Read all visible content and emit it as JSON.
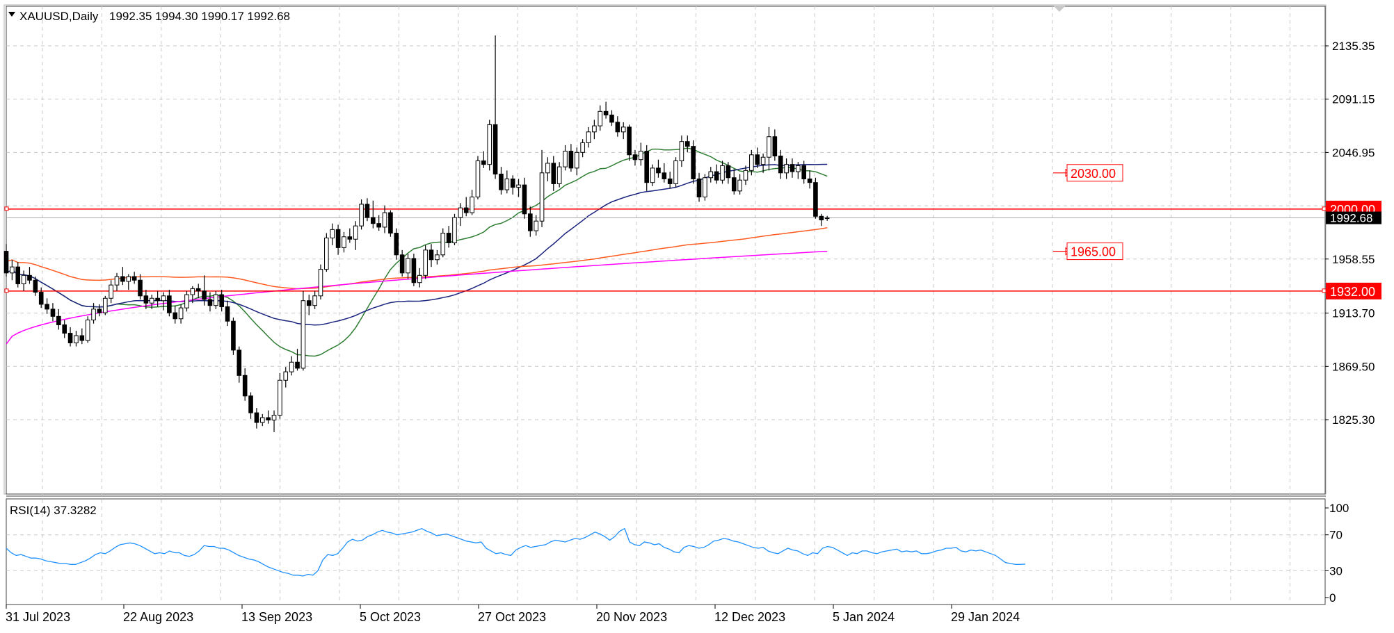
{
  "header": {
    "symbol": "XAUUSD,Daily",
    "ohlc": "1992.35 1994.30 1990.17 1992.68"
  },
  "rsi": {
    "label": "RSI(14) 37.3282",
    "ticks": [
      "100",
      "70",
      "30",
      "0"
    ]
  },
  "colors": {
    "candle": "#000000",
    "ma_green": "#2e7d32",
    "ma_blue": "#1a237e",
    "ma_orange": "#ff5a1f",
    "ma_magenta": "#ff00ff",
    "level_red": "#ff0000",
    "rsi_line": "#1e90ff",
    "grid": "#c8c8c8"
  },
  "chart_data": {
    "type": "line",
    "price_ticks": [
      "2135.35",
      "2091.15",
      "2046.95",
      "1958.55",
      "1913.70",
      "1869.50",
      "1825.30"
    ],
    "price_ylim": [
      1805,
      2155
    ],
    "current_price": "1992.68",
    "x_labels": [
      "31 Jul 2023",
      "22 Aug 2023",
      "13 Sep 2023",
      "5 Oct 2023",
      "27 Oct 2023",
      "20 Nov 2023",
      "12 Dec 2023",
      "5 Jan 2024",
      "29 Jan 2024"
    ],
    "levels": [
      {
        "value": 2030.0,
        "label": "2030.00",
        "style": "box"
      },
      {
        "value": 2000.0,
        "label": "2000.00",
        "style": "line"
      },
      {
        "value": 1965.0,
        "label": "1965.00",
        "style": "box"
      },
      {
        "value": 1932.0,
        "label": "1932.00",
        "style": "line"
      }
    ],
    "candles": [
      [
        1965,
        1971,
        1944,
        1947
      ],
      [
        1947,
        1958,
        1941,
        1952
      ],
      [
        1952,
        1956,
        1935,
        1938
      ],
      [
        1938,
        1949,
        1932,
        1945
      ],
      [
        1945,
        1952,
        1938,
        1941
      ],
      [
        1941,
        1944,
        1928,
        1931
      ],
      [
        1931,
        1935,
        1918,
        1921
      ],
      [
        1921,
        1926,
        1913,
        1917
      ],
      [
        1917,
        1922,
        1907,
        1911
      ],
      [
        1911,
        1917,
        1900,
        1904
      ],
      [
        1904,
        1908,
        1893,
        1897
      ],
      [
        1897,
        1902,
        1886,
        1889
      ],
      [
        1889,
        1899,
        1886,
        1895
      ],
      [
        1895,
        1901,
        1888,
        1891
      ],
      [
        1891,
        1911,
        1889,
        1908
      ],
      [
        1908,
        1922,
        1905,
        1917
      ],
      [
        1917,
        1921,
        1911,
        1914
      ],
      [
        1914,
        1928,
        1912,
        1926
      ],
      [
        1926,
        1941,
        1922,
        1937
      ],
      [
        1937,
        1947,
        1932,
        1944
      ],
      [
        1944,
        1952,
        1937,
        1940
      ],
      [
        1940,
        1946,
        1933,
        1944
      ],
      [
        1944,
        1948,
        1938,
        1941
      ],
      [
        1941,
        1946,
        1925,
        1928
      ],
      [
        1928,
        1933,
        1917,
        1922
      ],
      [
        1922,
        1929,
        1917,
        1926
      ],
      [
        1926,
        1932,
        1919,
        1924
      ],
      [
        1924,
        1931,
        1916,
        1928
      ],
      [
        1928,
        1933,
        1911,
        1914
      ],
      [
        1914,
        1920,
        1905,
        1909
      ],
      [
        1909,
        1921,
        1905,
        1918
      ],
      [
        1918,
        1932,
        1915,
        1929
      ],
      [
        1929,
        1936,
        1922,
        1934
      ],
      [
        1934,
        1938,
        1926,
        1932
      ],
      [
        1932,
        1945,
        1920,
        1925
      ],
      [
        1925,
        1931,
        1915,
        1920
      ],
      [
        1920,
        1932,
        1917,
        1929
      ],
      [
        1929,
        1933,
        1915,
        1919
      ],
      [
        1919,
        1924,
        1903,
        1907
      ],
      [
        1907,
        1910,
        1879,
        1883
      ],
      [
        1883,
        1886,
        1856,
        1862
      ],
      [
        1862,
        1868,
        1841,
        1845
      ],
      [
        1845,
        1848,
        1826,
        1831
      ],
      [
        1831,
        1835,
        1818,
        1823
      ],
      [
        1823,
        1830,
        1820,
        1827
      ],
      [
        1827,
        1833,
        1822,
        1825
      ],
      [
        1825,
        1833,
        1815,
        1829
      ],
      [
        1829,
        1864,
        1826,
        1858
      ],
      [
        1858,
        1869,
        1852,
        1865
      ],
      [
        1865,
        1878,
        1862,
        1873
      ],
      [
        1873,
        1884,
        1866,
        1868
      ],
      [
        1868,
        1932,
        1866,
        1924
      ],
      [
        1924,
        1929,
        1912,
        1920
      ],
      [
        1920,
        1932,
        1917,
        1928
      ],
      [
        1928,
        1954,
        1925,
        1950
      ],
      [
        1950,
        1980,
        1948,
        1976
      ],
      [
        1976,
        1988,
        1970,
        1983
      ],
      [
        1983,
        1987,
        1962,
        1968
      ],
      [
        1968,
        1981,
        1964,
        1977
      ],
      [
        1977,
        1984,
        1972,
        1975
      ],
      [
        1975,
        1990,
        1966,
        1986
      ],
      [
        1986,
        2008,
        1983,
        2004
      ],
      [
        2004,
        2009,
        1990,
        1993
      ],
      [
        1993,
        2007,
        1984,
        1988
      ],
      [
        1988,
        1995,
        1982,
        1985
      ],
      [
        1985,
        2003,
        1980,
        1997
      ],
      [
        1997,
        1999,
        1977,
        1980
      ],
      [
        1980,
        1984,
        1958,
        1962
      ],
      [
        1962,
        1966,
        1944,
        1947
      ],
      [
        1947,
        1963,
        1942,
        1959
      ],
      [
        1959,
        1963,
        1936,
        1939
      ],
      [
        1939,
        1951,
        1935,
        1945
      ],
      [
        1945,
        1970,
        1942,
        1966
      ],
      [
        1966,
        1971,
        1952,
        1958
      ],
      [
        1958,
        1966,
        1954,
        1962
      ],
      [
        1962,
        1984,
        1960,
        1980
      ],
      [
        1980,
        1986,
        1968,
        1972
      ],
      [
        1972,
        1996,
        1970,
        1993
      ],
      [
        1993,
        2005,
        1986,
        2001
      ],
      [
        2001,
        2010,
        1994,
        1997
      ],
      [
        1997,
        2016,
        1995,
        2010
      ],
      [
        2010,
        2044,
        2008,
        2040
      ],
      [
        2040,
        2048,
        2034,
        2037
      ],
      [
        2037,
        2074,
        2032,
        2070
      ],
      [
        2070,
        2144,
        2025,
        2029
      ],
      [
        2029,
        2035,
        2012,
        2016
      ],
      [
        2016,
        2032,
        2013,
        2025
      ],
      [
        2025,
        2028,
        2012,
        2018
      ],
      [
        2018,
        2025,
        2010,
        2020
      ],
      [
        2020,
        2026,
        1992,
        1996
      ],
      [
        1996,
        2002,
        1977,
        1982
      ],
      [
        1982,
        1995,
        1978,
        1990
      ],
      [
        1990,
        2049,
        1985,
        2030
      ],
      [
        2030,
        2043,
        2023,
        2038
      ],
      [
        2038,
        2044,
        2015,
        2021
      ],
      [
        2021,
        2039,
        2018,
        2035
      ],
      [
        2035,
        2053,
        2032,
        2048
      ],
      [
        2048,
        2054,
        2031,
        2034
      ],
      [
        2034,
        2051,
        2028,
        2047
      ],
      [
        2047,
        2058,
        2043,
        2055
      ],
      [
        2055,
        2068,
        2051,
        2064
      ],
      [
        2064,
        2074,
        2058,
        2069
      ],
      [
        2069,
        2086,
        2065,
        2081
      ],
      [
        2081,
        2089,
        2075,
        2078
      ],
      [
        2078,
        2082,
        2069,
        2072
      ],
      [
        2072,
        2077,
        2060,
        2064
      ],
      [
        2064,
        2072,
        2058,
        2068
      ],
      [
        2068,
        2070,
        2040,
        2045
      ],
      [
        2045,
        2049,
        2036,
        2041
      ],
      [
        2041,
        2055,
        2036,
        2048
      ],
      [
        2048,
        2053,
        2015,
        2022
      ],
      [
        2022,
        2037,
        2019,
        2034
      ],
      [
        2034,
        2041,
        2026,
        2030
      ],
      [
        2030,
        2038,
        2022,
        2025
      ],
      [
        2025,
        2031,
        2017,
        2021
      ],
      [
        2021,
        2043,
        2018,
        2040
      ],
      [
        2040,
        2061,
        2035,
        2056
      ],
      [
        2056,
        2061,
        2047,
        2052
      ],
      [
        2052,
        2057,
        2021,
        2025
      ],
      [
        2025,
        2030,
        2006,
        2010
      ],
      [
        2010,
        2029,
        2007,
        2026
      ],
      [
        2026,
        2035,
        2022,
        2031
      ],
      [
        2031,
        2037,
        2021,
        2024
      ],
      [
        2024,
        2040,
        2021,
        2036
      ],
      [
        2036,
        2039,
        2021,
        2026
      ],
      [
        2026,
        2033,
        2012,
        2015
      ],
      [
        2015,
        2029,
        2012,
        2024
      ],
      [
        2024,
        2036,
        2020,
        2032
      ],
      [
        2032,
        2049,
        2028,
        2045
      ],
      [
        2045,
        2051,
        2034,
        2037
      ],
      [
        2037,
        2046,
        2030,
        2043
      ],
      [
        2043,
        2068,
        2032,
        2060
      ],
      [
        2060,
        2066,
        2040,
        2044
      ],
      [
        2044,
        2049,
        2025,
        2030
      ],
      [
        2030,
        2042,
        2025,
        2037
      ],
      [
        2037,
        2042,
        2026,
        2031
      ],
      [
        2031,
        2039,
        2025,
        2036
      ],
      [
        2036,
        2040,
        2021,
        2025
      ],
      [
        2025,
        2032,
        2017,
        2022
      ],
      [
        2022,
        2026,
        1992,
        1994
      ],
      [
        1994,
        1996,
        1986,
        1991
      ],
      [
        1992.35,
        1994.3,
        1990.17,
        1992.68
      ]
    ],
    "rsi_values": [
      55,
      50,
      47,
      48,
      46,
      44,
      44,
      43,
      41,
      40,
      39,
      38,
      38,
      37,
      37,
      39,
      41,
      44,
      48,
      50,
      49,
      52,
      56,
      59,
      60,
      61,
      60,
      58,
      55,
      52,
      49,
      50,
      49,
      52,
      50,
      50,
      47,
      46,
      48,
      52,
      58,
      57,
      57,
      55,
      55,
      53,
      50,
      47,
      45,
      43,
      42,
      40,
      37,
      34,
      32,
      30,
      28,
      27,
      25,
      25,
      24,
      26,
      25,
      30,
      42,
      48,
      47,
      49,
      55,
      62,
      65,
      63,
      64,
      68,
      70,
      73,
      75,
      73,
      72,
      70,
      71,
      72,
      73,
      75,
      77,
      74,
      72,
      69,
      70,
      71,
      69,
      67,
      65,
      63,
      62,
      61,
      62,
      55,
      52,
      49,
      50,
      48,
      47,
      53,
      56,
      58,
      56,
      57,
      58,
      59,
      62,
      64,
      63,
      62,
      64,
      66,
      65,
      67,
      70,
      73,
      71,
      68,
      64,
      68,
      74,
      77,
      62,
      59,
      58,
      62,
      61,
      59,
      60,
      56,
      54,
      51,
      50,
      56,
      58,
      57,
      55,
      56,
      59,
      63,
      64,
      66,
      65,
      63,
      62,
      60,
      58,
      56,
      55,
      56,
      52,
      50,
      49,
      52,
      55,
      53,
      52,
      49,
      47,
      50,
      49,
      55,
      57,
      56,
      53,
      50,
      47,
      50,
      49,
      52,
      52,
      50,
      49,
      51,
      52,
      53,
      54,
      51,
      52,
      51,
      52,
      49,
      49,
      50,
      52,
      53,
      55,
      55,
      56,
      52,
      51,
      53,
      52,
      53,
      51,
      49,
      47,
      43,
      39,
      38,
      37,
      37,
      37.33
    ],
    "rsi_ylim": [
      0,
      100
    ]
  }
}
